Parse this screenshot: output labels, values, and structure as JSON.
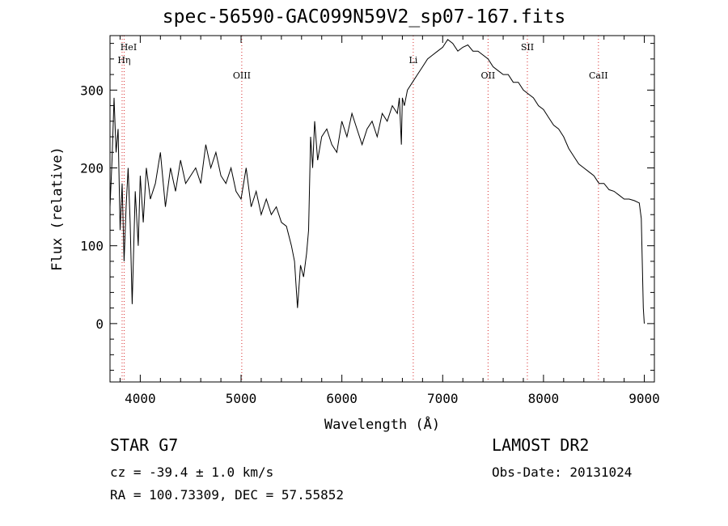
{
  "chart_data": {
    "type": "line",
    "title": "spec-56590-GAC099N59V2_sp07-167.fits",
    "xlabel": "Wavelength (Å)",
    "ylabel": "Flux (relative)",
    "xlim": [
      3700,
      9100
    ],
    "ylim": [
      -75,
      370
    ],
    "x_ticks": [
      4000,
      5000,
      6000,
      7000,
      8000,
      9000
    ],
    "y_ticks": [
      0,
      100,
      200,
      300
    ],
    "grid": false,
    "line_color": "#000000",
    "marker_color": "#d62728",
    "series": [
      {
        "x": [
          3700,
          3720,
          3740,
          3760,
          3780,
          3800,
          3820,
          3840,
          3860,
          3880,
          3900,
          3920,
          3950,
          3980,
          4000,
          4030,
          4060,
          4100,
          4150,
          4200,
          4250,
          4300,
          4350,
          4400,
          4450,
          4500,
          4550,
          4600,
          4650,
          4700,
          4750,
          4800,
          4850,
          4900,
          4950,
          5000,
          5050,
          5100,
          5150,
          5200,
          5250,
          5300,
          5350,
          5400,
          5450,
          5500,
          5530,
          5560,
          5590,
          5620,
          5650,
          5670,
          5690,
          5710,
          5730,
          5760,
          5800,
          5850,
          5900,
          5950,
          6000,
          6050,
          6100,
          6150,
          6200,
          6250,
          6300,
          6350,
          6400,
          6450,
          6500,
          6550,
          6570,
          6590,
          6600,
          6620,
          6650,
          6700,
          6750,
          6800,
          6850,
          6900,
          6950,
          7000,
          7050,
          7100,
          7150,
          7200,
          7250,
          7300,
          7350,
          7400,
          7450,
          7500,
          7550,
          7600,
          7650,
          7700,
          7750,
          7800,
          7850,
          7900,
          7950,
          8000,
          8050,
          8100,
          8150,
          8200,
          8250,
          8300,
          8350,
          8400,
          8450,
          8500,
          8550,
          8600,
          8650,
          8700,
          8750,
          8800,
          8850,
          8900,
          8950,
          8970,
          8980,
          8990,
          9000
        ],
        "y": [
          150,
          210,
          290,
          220,
          250,
          120,
          180,
          80,
          150,
          200,
          130,
          25,
          170,
          100,
          190,
          130,
          200,
          160,
          180,
          220,
          150,
          200,
          170,
          210,
          180,
          190,
          200,
          180,
          230,
          200,
          220,
          190,
          180,
          200,
          170,
          160,
          200,
          150,
          170,
          140,
          160,
          140,
          150,
          130,
          125,
          100,
          80,
          20,
          75,
          60,
          90,
          120,
          240,
          200,
          260,
          210,
          240,
          250,
          230,
          220,
          260,
          240,
          270,
          250,
          230,
          250,
          260,
          240,
          270,
          260,
          280,
          270,
          290,
          230,
          290,
          280,
          300,
          310,
          320,
          330,
          340,
          345,
          350,
          355,
          365,
          360,
          350,
          355,
          358,
          350,
          350,
          345,
          340,
          330,
          325,
          320,
          320,
          310,
          310,
          300,
          295,
          290,
          280,
          275,
          265,
          255,
          250,
          240,
          225,
          215,
          205,
          200,
          195,
          190,
          180,
          180,
          172,
          170,
          165,
          160,
          160,
          158,
          155,
          135,
          80,
          20,
          0
        ]
      }
    ],
    "line_markers": [
      {
        "label": "HeI",
        "x": 3820
      },
      {
        "label": "Hη",
        "x": 3840
      },
      {
        "label": "OIII",
        "x": 5007
      },
      {
        "label": "Li",
        "x": 6708
      },
      {
        "label": "OII",
        "x": 7450
      },
      {
        "label": "SII",
        "x": 7840
      },
      {
        "label": "CaII",
        "x": 8545
      }
    ]
  },
  "info": {
    "object": "STAR   G7",
    "cz": "cz = -39.4 ± 1.0 km/s",
    "radec": "RA = 100.73309, DEC =  57.55852",
    "survey": "LAMOST DR2",
    "obs_date": "Obs-Date: 20131024"
  }
}
